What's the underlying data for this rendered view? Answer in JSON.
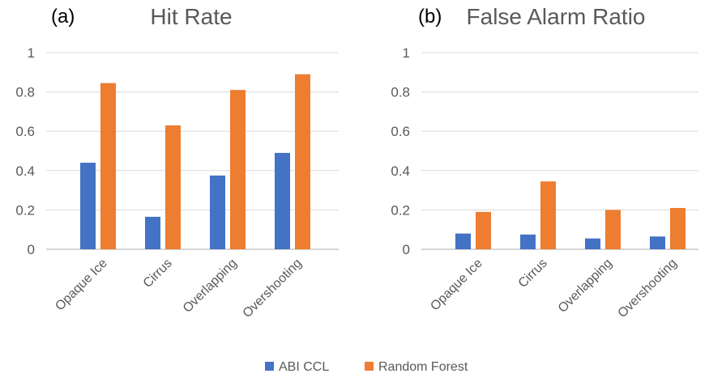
{
  "colors": {
    "abi": "#4472C4",
    "rf": "#ED7D31",
    "grid": "#D9D9D9",
    "axis": "#BFBFBF",
    "text": "#595959"
  },
  "chart_data": [
    {
      "type": "bar",
      "panel_label": "(a)",
      "title": "Hit Rate",
      "categories": [
        "Opaque Ice",
        "Cirrus",
        "Overlapping",
        "Overshooting"
      ],
      "series": [
        {
          "name": "ABI CCL",
          "values": [
            0.44,
            0.165,
            0.375,
            0.49
          ]
        },
        {
          "name": "Random Forest",
          "values": [
            0.845,
            0.63,
            0.81,
            0.89
          ]
        }
      ],
      "ylim": [
        0,
        1
      ],
      "yticks": [
        "0",
        "0.2",
        "0.4",
        "0.6",
        "0.8",
        "1"
      ],
      "grid": true
    },
    {
      "type": "bar",
      "panel_label": "(b)",
      "title": "False Alarm Ratio",
      "categories": [
        "Opaque Ice",
        "Cirrus",
        "Overlapping",
        "Overshooting"
      ],
      "series": [
        {
          "name": "ABI CCL",
          "values": [
            0.08,
            0.075,
            0.055,
            0.065
          ]
        },
        {
          "name": "Random Forest",
          "values": [
            0.19,
            0.345,
            0.2,
            0.21
          ]
        }
      ],
      "ylim": [
        0,
        1
      ],
      "yticks": [
        "0",
        "0.2",
        "0.4",
        "0.6",
        "0.8",
        "1"
      ],
      "grid": true
    }
  ],
  "legend": {
    "placement": "bottom-center",
    "items": [
      "ABI CCL",
      "Random Forest"
    ]
  }
}
